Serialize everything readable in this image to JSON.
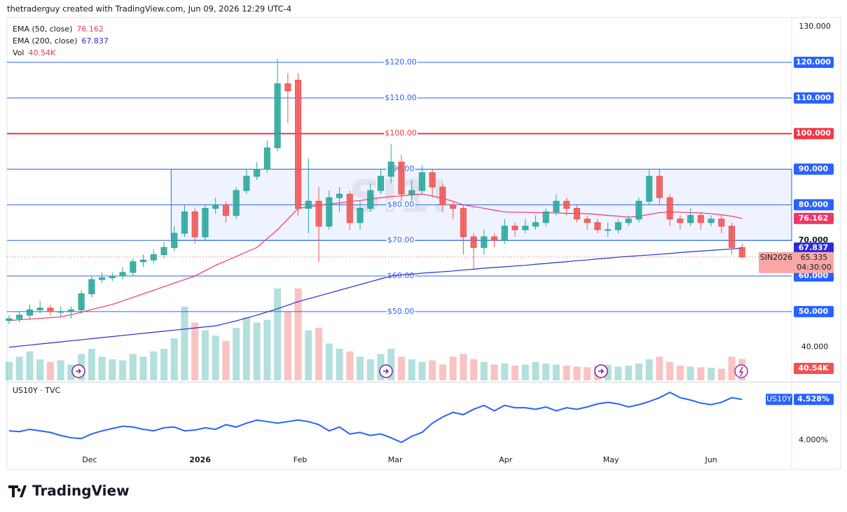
{
  "header": {
    "author_line": "thetraderguy created with TradingView.com, Jun 09, 2026 12:29 UTC-4",
    "brand": "TradingView"
  },
  "chart_data": [
    {
      "type": "candlestick",
      "watermark": "SI1!",
      "legend": [
        {
          "name": "EMA (50, close)",
          "label": "76.162",
          "color": "#f23669"
        },
        {
          "name": "EMA (200, close)",
          "label": "67.837",
          "color": "#2a2adb"
        },
        {
          "name": "Vol",
          "label": "40.54K",
          "color": "#f23645"
        }
      ],
      "symbol": "SIN2026",
      "last_label": "65.335",
      "countdown": "04:30:00",
      "up_color": "#26a69a",
      "down_color": "#ef5350",
      "open": [
        47.5,
        48,
        49,
        50.5,
        51,
        50,
        50,
        50.5,
        55,
        59,
        59.5,
        60,
        61,
        64,
        64.5,
        66,
        68,
        72,
        78,
        71,
        79,
        80,
        77,
        84,
        88,
        90,
        96,
        114,
        115,
        79,
        81,
        74,
        82,
        83,
        75,
        79,
        84,
        88,
        92,
        83,
        84,
        89,
        85,
        80,
        79,
        71,
        68,
        71,
        70,
        74,
        73,
        74,
        75,
        78,
        81,
        79,
        76,
        75,
        73,
        73,
        75,
        76,
        81,
        88,
        82,
        76,
        75,
        77,
        75,
        76,
        74,
        68
      ],
      "high": [
        49,
        50,
        52,
        53,
        52,
        51.5,
        51.5,
        56,
        60,
        61,
        61,
        62.5,
        65,
        66,
        67.5,
        69.5,
        74,
        80,
        79,
        80,
        82,
        81,
        85,
        90,
        92,
        98,
        121,
        117,
        117,
        93,
        85,
        84,
        85,
        84,
        81,
        86,
        90,
        97,
        94,
        87,
        91,
        90,
        86,
        81,
        80,
        72,
        73,
        72,
        76,
        75,
        76,
        77,
        79,
        83,
        82,
        80,
        77,
        76,
        75,
        76,
        77,
        82,
        90,
        90,
        83,
        77,
        79,
        78,
        77,
        77,
        75,
        69
      ],
      "low": [
        46.5,
        47,
        48,
        49.5,
        49,
        48.5,
        48,
        49.5,
        54,
        58,
        58.5,
        59,
        60,
        62.5,
        63.5,
        65,
        67,
        71,
        69,
        70,
        77.5,
        75,
        76,
        83,
        87,
        89,
        95,
        103,
        77,
        72,
        64,
        73,
        78,
        73,
        73,
        78,
        83,
        86,
        81,
        81,
        83,
        82,
        78,
        76,
        66,
        62,
        66,
        68,
        69,
        71,
        72,
        73,
        74,
        77,
        77,
        75,
        73,
        72,
        71,
        72,
        74,
        75,
        80,
        80,
        74,
        73,
        74,
        73,
        74,
        72,
        66,
        65
      ],
      "close": [
        48,
        49,
        50.5,
        51,
        50,
        50,
        50.5,
        55,
        59,
        59.5,
        60,
        61,
        64,
        64.5,
        66,
        68,
        72,
        78,
        71,
        79,
        80,
        77,
        84,
        88,
        90,
        96,
        114,
        112,
        79,
        81,
        74,
        82,
        83,
        75,
        79,
        84,
        88,
        92,
        83,
        84,
        89,
        85,
        80,
        79,
        71,
        68,
        71,
        70,
        74,
        73,
        74,
        75,
        78,
        81,
        79,
        76,
        75,
        73,
        73,
        75,
        76,
        81,
        88,
        82,
        76,
        75,
        77,
        75,
        76,
        74,
        68,
        65.335
      ],
      "volume": [
        35,
        45,
        55,
        40,
        35,
        38,
        30,
        50,
        60,
        45,
        40,
        38,
        50,
        45,
        55,
        60,
        80,
        140,
        110,
        95,
        85,
        75,
        100,
        120,
        110,
        115,
        175,
        130,
        175,
        95,
        100,
        70,
        60,
        55,
        45,
        40,
        50,
        60,
        45,
        40,
        35,
        38,
        30,
        45,
        50,
        40,
        35,
        30,
        32,
        28,
        30,
        35,
        32,
        30,
        28,
        26,
        25,
        28,
        30,
        26,
        28,
        32,
        40,
        45,
        35,
        28,
        26,
        25,
        24,
        22,
        45,
        40.54
      ],
      "vlim": [
        0,
        180
      ],
      "ema50": [
        47.5,
        47.7,
        47.9,
        48.1,
        48.3,
        48.5,
        49.1,
        49.8,
        50.6,
        51.3,
        52,
        53,
        54,
        55,
        56,
        57,
        58,
        59,
        60,
        61.5,
        63,
        64.2,
        65.5,
        66.8,
        68,
        70.5,
        73,
        76,
        79,
        79.4,
        79.8,
        80.2,
        80.5,
        80.9,
        81.2,
        81.6,
        82,
        82.3,
        82.5,
        82.8,
        83,
        82.5,
        81.8,
        81,
        80,
        79.5,
        79,
        78.5,
        78,
        77.9,
        77.9,
        77.8,
        77.8,
        77.7,
        77.6,
        77.6,
        77.5,
        77.3,
        77,
        76.8,
        76.5,
        76.8,
        77.3,
        77.8,
        78,
        77.9,
        77.8,
        77.7,
        77.5,
        77.2,
        76.8,
        76.162
      ],
      "ema200": [
        40,
        40.3,
        40.6,
        40.9,
        41.2,
        41.5,
        41.8,
        42.1,
        42.4,
        42.7,
        43,
        43.3,
        43.6,
        43.9,
        44.2,
        44.5,
        44.8,
        45.1,
        45.4,
        45.7,
        46,
        46.7,
        47.4,
        48.2,
        49,
        49.9,
        50.8,
        51.8,
        52.8,
        53.6,
        54.4,
        55.2,
        56,
        56.8,
        57.6,
        58.4,
        59.2,
        60,
        60.3,
        60.5,
        60.8,
        61,
        61.2,
        61.4,
        61.7,
        61.9,
        62.2,
        62.4,
        62.6,
        62.8,
        63,
        63.3,
        63.5,
        63.8,
        64,
        64.3,
        64.5,
        64.8,
        65,
        65.3,
        65.5,
        65.7,
        65.9,
        66.1,
        66.3,
        66.6,
        66.8,
        67,
        67.2,
        67.4,
        67.6,
        67.837
      ],
      "xlim": [
        -0.2,
        75.8
      ],
      "xticks": [
        {
          "value": 7.8,
          "label": "Dec"
        },
        {
          "value": 18.5,
          "label": "2026"
        },
        {
          "value": 28.2,
          "label": "Feb"
        },
        {
          "value": 37.4,
          "label": "Mar"
        },
        {
          "value": 48.1,
          "label": "Apr"
        },
        {
          "value": 58.3,
          "label": "May"
        },
        {
          "value": 68,
          "label": "Jun"
        }
      ],
      "ylim": [
        30.7,
        132.6
      ],
      "yticks": [
        {
          "value": 130,
          "label": "130.000"
        },
        {
          "value": 40,
          "label": "40.000"
        }
      ],
      "levels": [
        {
          "value": 120,
          "label": "$120.00",
          "tag": "120.000",
          "color": "#2962ff"
        },
        {
          "value": 110,
          "label": "$110.00",
          "tag": "110.000",
          "color": "#2962ff"
        },
        {
          "value": 100,
          "label": "$100.00",
          "tag": "100.000",
          "color": "#f23645"
        },
        {
          "value": 90,
          "label": "$90.00",
          "tag": "90.000",
          "color": "#2962ff"
        },
        {
          "value": 80,
          "label": "$80.00",
          "tag": "80.000",
          "color": "#2962ff"
        },
        {
          "value": 70,
          "label": "$70.00",
          "tag": "70.000",
          "color": "#2962ff"
        },
        {
          "value": 60,
          "label": "$60.00",
          "tag": "60.000",
          "color": "#2962ff"
        },
        {
          "value": 50,
          "label": "$50.00",
          "tag": "50.000",
          "color": "#2962ff"
        }
      ],
      "box": {
        "x0": 15.7,
        "y0": 70,
        "y1": 90,
        "color": "#2962ff"
      }
    },
    {
      "type": "line",
      "title": "US10Y · TVC",
      "symbol": "US10Y",
      "color": "#2962ff",
      "last_label": "4.528%",
      "values": [
        4.12,
        4.11,
        4.14,
        4.12,
        4.1,
        4.06,
        4.03,
        4.02,
        4.08,
        4.12,
        4.15,
        4.18,
        4.17,
        4.14,
        4.12,
        4.16,
        4.17,
        4.12,
        4.13,
        4.16,
        4.14,
        4.2,
        4.17,
        4.22,
        4.26,
        4.24,
        4.22,
        4.24,
        4.26,
        4.24,
        4.2,
        4.12,
        4.17,
        4.08,
        4.1,
        4.06,
        4.08,
        4.03,
        3.97,
        4.05,
        4.1,
        4.22,
        4.3,
        4.36,
        4.33,
        4.4,
        4.45,
        4.38,
        4.45,
        4.42,
        4.42,
        4.4,
        4.43,
        4.38,
        4.42,
        4.4,
        4.43,
        4.47,
        4.49,
        4.47,
        4.43,
        4.46,
        4.5,
        4.55,
        4.62,
        4.55,
        4.52,
        4.48,
        4.46,
        4.49,
        4.55,
        4.528
      ],
      "ylim": [
        3.64,
        4.73
      ],
      "yticks": [
        {
          "value": 4,
          "label": "4.000%"
        }
      ]
    }
  ]
}
